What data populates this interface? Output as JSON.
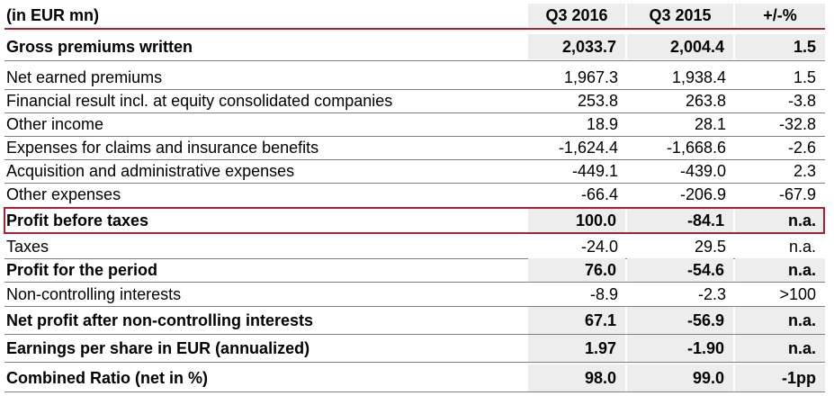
{
  "header": {
    "label": "(in EUR mn)",
    "col1": "Q3 2016",
    "col2": "Q3 2015",
    "col3": "+/-%"
  },
  "rows": [
    {
      "label": "Gross premiums written",
      "q3_2016": "2,033.7",
      "q3_2015": "2,004.4",
      "change": "1.5"
    },
    {
      "label": "Net earned premiums",
      "q3_2016": "1,967.3",
      "q3_2015": "1,938.4",
      "change": "1.5"
    },
    {
      "label": "Financial result incl. at equity consolidated companies",
      "q3_2016": "253.8",
      "q3_2015": "263.8",
      "change": "-3.8"
    },
    {
      "label": "Other income",
      "q3_2016": "18.9",
      "q3_2015": "28.1",
      "change": "-32.8"
    },
    {
      "label": "Expenses for claims and insurance benefits",
      "q3_2016": "-1,624.4",
      "q3_2015": "-1,668.6",
      "change": "-2.6"
    },
    {
      "label": "Acquisition and administrative expenses",
      "q3_2016": "-449.1",
      "q3_2015": "-439.0",
      "change": "2.3"
    },
    {
      "label": "Other expenses",
      "q3_2016": "-66.4",
      "q3_2015": "-206.9",
      "change": "-67.9"
    },
    {
      "label": "Profit before taxes",
      "q3_2016": "100.0",
      "q3_2015": "-84.1",
      "change": "n.a."
    },
    {
      "label": "Taxes",
      "q3_2016": "-24.0",
      "q3_2015": "29.5",
      "change": "n.a."
    },
    {
      "label": "Profit for the period",
      "q3_2016": "76.0",
      "q3_2015": "-54.6",
      "change": "n.a."
    },
    {
      "label": "Non-controlling interests",
      "q3_2016": "-8.9",
      "q3_2015": "-2.3",
      "change": ">100"
    },
    {
      "label": "Net profit after non-controlling interests",
      "q3_2016": "67.1",
      "q3_2015": "-56.9",
      "change": "n.a."
    },
    {
      "label": "Earnings per share in EUR (annualized)",
      "q3_2016": "1.97",
      "q3_2015": "-1.90",
      "change": "n.a."
    },
    {
      "label": "Combined Ratio (net in %)",
      "q3_2016": "98.0",
      "q3_2015": "99.0",
      "change": "-1pp"
    }
  ],
  "colors": {
    "accent_red": "#b01f2e",
    "header_shade": "#ededed",
    "rule_gray": "#7f7f7f"
  }
}
